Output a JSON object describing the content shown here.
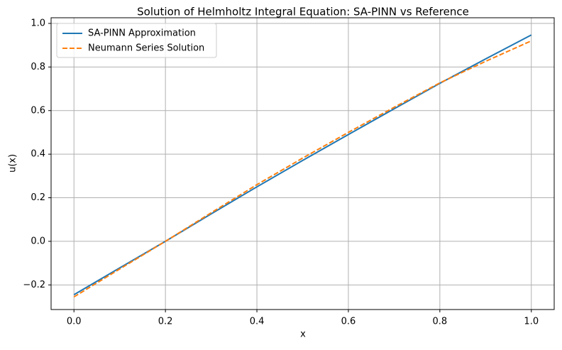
{
  "chart_data": {
    "type": "line",
    "title": "Solution of Helmholtz Integral Equation: SA-PINN vs Reference",
    "xlabel": "x",
    "ylabel": "u(x)",
    "x": [
      0,
      0.1,
      0.2,
      0.3,
      0.4,
      0.5,
      0.6,
      0.7,
      0.8,
      0.9,
      1
    ],
    "series": [
      {
        "name": "SA-PINN Approximation",
        "color": "#1f77b4",
        "dash": false,
        "values": [
          -0.245,
          -0.122,
          0.0,
          0.126,
          0.25,
          0.371,
          0.49,
          0.608,
          0.725,
          0.837,
          0.947
        ]
      },
      {
        "name": "Neumann Series Solution",
        "color": "#ff7f0e",
        "dash": true,
        "values": [
          -0.255,
          -0.127,
          0.0,
          0.131,
          0.26,
          0.382,
          0.5,
          0.615,
          0.727,
          0.826,
          0.92
        ]
      }
    ],
    "xlim": [
      -0.05,
      1.05
    ],
    "ylim": [
      -0.313,
      1.026
    ],
    "xticks": [
      {
        "value": 0,
        "label": "0.0"
      },
      0.2,
      0.4,
      0.6,
      0.8,
      {
        "value": 1,
        "label": "1.0"
      }
    ],
    "yticks": [
      {
        "value": -0.2,
        "label": "−0.2"
      },
      {
        "value": 0,
        "label": "0.0"
      },
      0.2,
      0.4,
      0.6,
      0.8,
      {
        "value": 1,
        "label": "1.0"
      }
    ],
    "grid": true,
    "legend": "upper-left"
  }
}
